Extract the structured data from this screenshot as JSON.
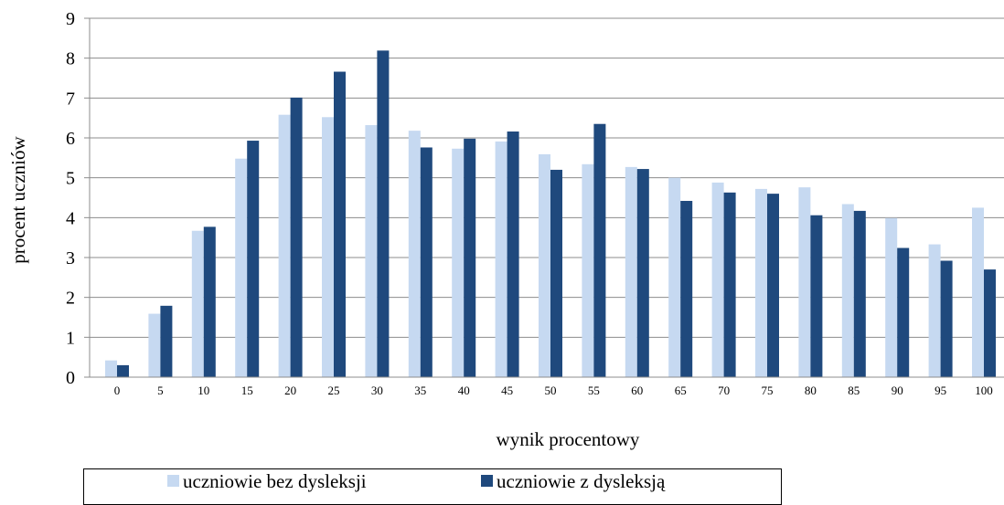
{
  "chart_data": {
    "type": "bar",
    "title": "",
    "xlabel": "wynik procentowy",
    "ylabel": "procent uczniów",
    "ylim": [
      0,
      9
    ],
    "yticks": [
      0,
      1,
      2,
      3,
      4,
      5,
      6,
      7,
      8,
      9
    ],
    "grid": true,
    "legend_position": "bottom",
    "categories": [
      "0",
      "5",
      "10",
      "15",
      "20",
      "25",
      "30",
      "35",
      "40",
      "45",
      "50",
      "55",
      "60",
      "65",
      "70",
      "75",
      "80",
      "85",
      "90",
      "95",
      "100"
    ],
    "series": [
      {
        "name": "uczniowie bez dysleksji",
        "color": "#c6d9f1",
        "values": [
          0.42,
          1.59,
          3.67,
          5.48,
          6.58,
          6.52,
          6.32,
          6.18,
          5.73,
          5.91,
          5.59,
          5.34,
          5.27,
          5.0,
          4.88,
          4.72,
          4.76,
          4.34,
          3.99,
          3.33,
          4.25
        ]
      },
      {
        "name": "uczniowie z dysleksją",
        "color": "#1f497d",
        "values": [
          0.3,
          1.79,
          3.77,
          5.93,
          7.01,
          7.66,
          8.19,
          5.76,
          5.98,
          6.16,
          5.2,
          6.35,
          5.22,
          4.42,
          4.63,
          4.6,
          4.06,
          4.17,
          3.24,
          2.92,
          2.7
        ]
      }
    ]
  }
}
